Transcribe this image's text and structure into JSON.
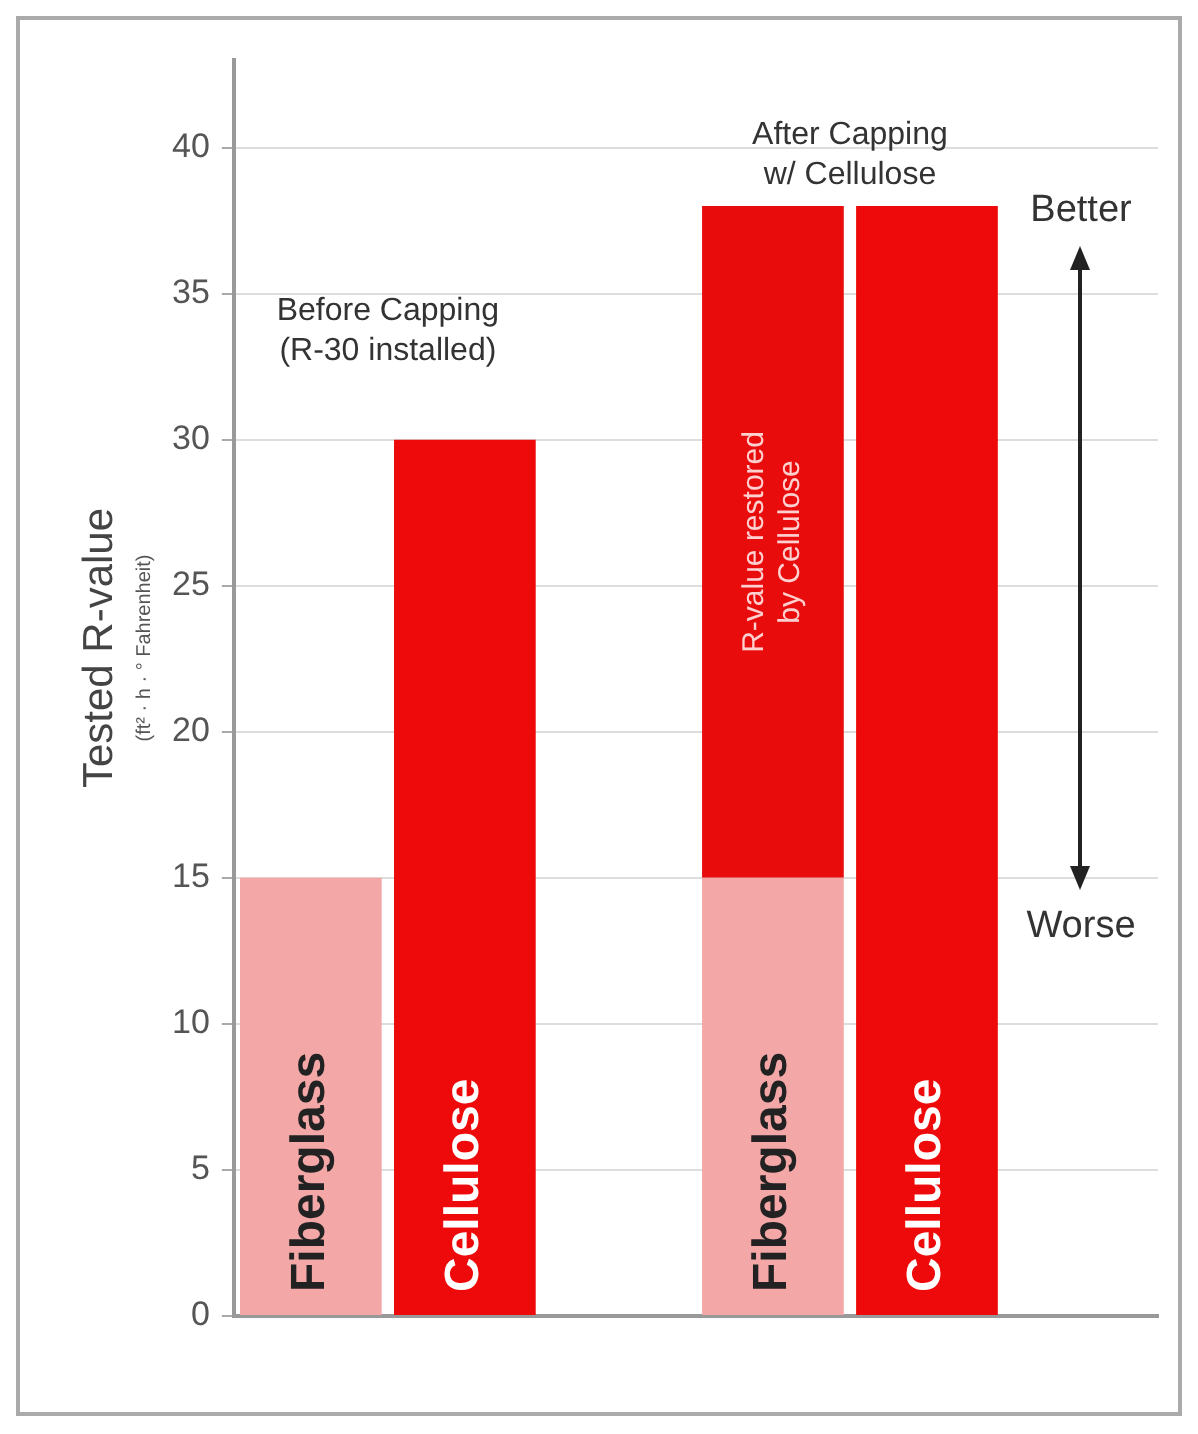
{
  "chart_data": {
    "type": "bar",
    "stacked": true,
    "ylabel": "Tested R-value",
    "categories": [
      "Fiberglass",
      "Cellulose",
      null,
      "Fiberglass",
      "Cellulose",
      null
    ],
    "series": [
      {
        "values": [
          15,
          30,
          null,
          15,
          38,
          null
        ],
        "colors": [
          "#f4a7a7",
          "#ee0a0a",
          null,
          "#f4a7a7",
          "#ee0a0a",
          null
        ]
      },
      {
        "name": "R-value restored by Cellulose",
        "color": "#e80c0c",
        "values": [
          null,
          null,
          null,
          23,
          null,
          null
        ]
      }
    ],
    "ylim": [
      0,
      43
    ],
    "yticks": [
      0,
      5,
      10,
      15,
      20,
      25,
      30,
      35,
      40
    ],
    "grid": "y",
    "annotations": [
      "(ft² · h · ° Fahrenheit)",
      "Before Capping\n(R-30 installed)",
      "After Capping\nw/ Cellulose",
      "Better",
      "Worse"
    ]
  }
}
